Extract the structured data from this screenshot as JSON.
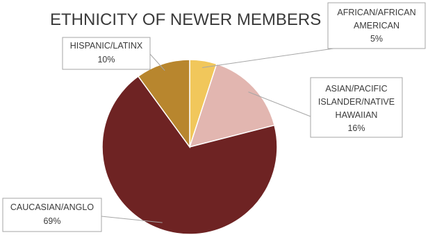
{
  "chart_data": {
    "type": "pie",
    "title": "ETHNICITY OF NEWER MEMBERS",
    "slices": [
      {
        "name": "AFRICAN/AFRICAN AMERICAN",
        "value": 5,
        "label_lines": [
          "AFRICAN/AFRICAN",
          "AMERICAN",
          "5%"
        ],
        "color": "#f1c75b"
      },
      {
        "name": "ASIAN/PACIFIC ISLANDER/NATIVE HAWAIIAN",
        "value": 16,
        "label_lines": [
          "ASIAN/PACIFIC",
          "ISLANDER/NATIVE",
          "HAWAIIAN",
          "16%"
        ],
        "color": "#e2b6b0"
      },
      {
        "name": "CAUCASIAN/ANGLO",
        "value": 69,
        "label_lines": [
          "CAUCASIAN/ANGLO",
          "69%"
        ],
        "color": "#6e2323"
      },
      {
        "name": "HISPANIC/LATINX",
        "value": 10,
        "label_lines": [
          "HISPANIC/LATINX",
          "10%"
        ],
        "color": "#b8862e"
      }
    ],
    "start_angle": "12 o'clock",
    "direction": "clockwise",
    "legend": "none"
  }
}
